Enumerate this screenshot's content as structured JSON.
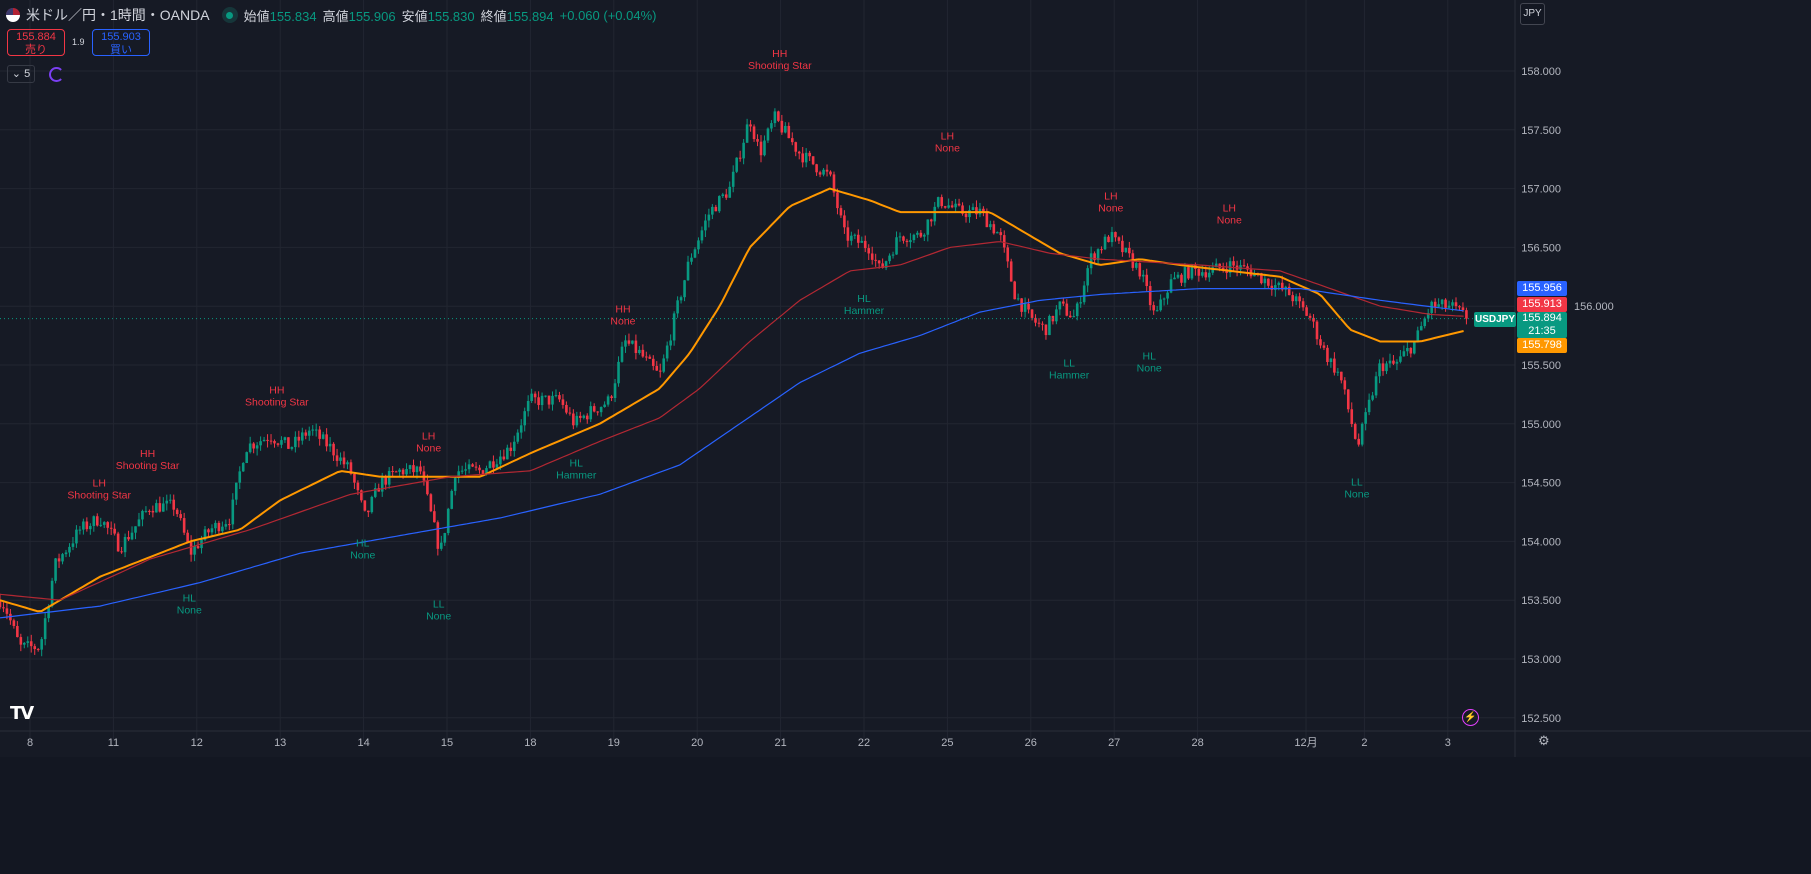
{
  "header": {
    "symbol_title": "米ドル／円・1時間・OANDA",
    "open_label": "始値",
    "open": "155.834",
    "high_label": "高値",
    "high": "155.906",
    "low_label": "安値",
    "low": "155.830",
    "close_label": "終値",
    "close": "155.894",
    "change": "+0.060 (+0.04%)"
  },
  "trade": {
    "sell_price": "155.884",
    "sell_label": "売り",
    "spread": "1.9",
    "buy_price": "155.903",
    "buy_label": "買い"
  },
  "indicators_collapsed_count": "5",
  "currency": "JPY",
  "badges": {
    "blue": "155.956",
    "red": "155.913",
    "last": "155.894",
    "symbol": "USDJPY",
    "countdown": "21:35",
    "orange": "155.798"
  },
  "logo": "TV",
  "colors": {
    "up": "#089981",
    "down": "#f23645",
    "fast_ma": "#ff9800",
    "mid_ma": "#b22833",
    "slow_ma": "#2962ff",
    "label_red": "#f23645",
    "label_green": "#089981"
  },
  "chart_data": {
    "type": "candlestick",
    "title": "USDJPY 1h",
    "x_unit": "trading days from 8th",
    "ylim": [
      152.3,
      158.3
    ],
    "xlim": [
      -0.36,
      17.9
    ],
    "y_ticks": [
      "158.000",
      "157.500",
      "157.000",
      "156.500",
      "156.000",
      "155.500",
      "155.000",
      "154.500",
      "154.000",
      "153.500",
      "153.000",
      "152.500"
    ],
    "x_ticks": [
      {
        "label": "8",
        "x": 0
      },
      {
        "label": "11",
        "x": 1
      },
      {
        "label": "12",
        "x": 2
      },
      {
        "label": "13",
        "x": 3
      },
      {
        "label": "14",
        "x": 4
      },
      {
        "label": "15",
        "x": 5
      },
      {
        "label": "18",
        "x": 6
      },
      {
        "label": "19",
        "x": 7
      },
      {
        "label": "20",
        "x": 8
      },
      {
        "label": "21",
        "x": 9
      },
      {
        "label": "22",
        "x": 10
      },
      {
        "label": "25",
        "x": 11
      },
      {
        "label": "26",
        "x": 12
      },
      {
        "label": "27",
        "x": 13
      },
      {
        "label": "28",
        "x": 14
      },
      {
        "label": "12月",
        "x": 15.3
      },
      {
        "label": "2",
        "x": 16
      },
      {
        "label": "3",
        "x": 17
      }
    ],
    "price_path": [
      [
        -0.36,
        153.5
      ],
      [
        -0.3,
        153.45
      ],
      [
        -0.12,
        153.1
      ],
      [
        0.12,
        153.1
      ],
      [
        0.3,
        153.8
      ],
      [
        0.6,
        154.1
      ],
      [
        0.84,
        154.2
      ],
      [
        1.08,
        153.95
      ],
      [
        1.44,
        154.3
      ],
      [
        1.74,
        154.3
      ],
      [
        1.92,
        153.9
      ],
      [
        2.16,
        154.1
      ],
      [
        2.4,
        154.2
      ],
      [
        2.58,
        154.8
      ],
      [
        2.88,
        154.9
      ],
      [
        3.12,
        154.8
      ],
      [
        3.36,
        154.95
      ],
      [
        3.6,
        154.8
      ],
      [
        3.84,
        154.6
      ],
      [
        4.02,
        154.2
      ],
      [
        4.2,
        154.5
      ],
      [
        4.44,
        154.6
      ],
      [
        4.68,
        154.6
      ],
      [
        4.92,
        153.9
      ],
      [
        5.1,
        154.6
      ],
      [
        5.4,
        154.6
      ],
      [
        5.76,
        154.8
      ],
      [
        6.0,
        155.2
      ],
      [
        6.35,
        155.2
      ],
      [
        6.53,
        155.0
      ],
      [
        6.71,
        155.1
      ],
      [
        6.95,
        155.2
      ],
      [
        7.13,
        155.7
      ],
      [
        7.31,
        155.6
      ],
      [
        7.55,
        155.4
      ],
      [
        7.73,
        155.9
      ],
      [
        7.91,
        156.4
      ],
      [
        8.15,
        156.8
      ],
      [
        8.39,
        157.0
      ],
      [
        8.63,
        157.6
      ],
      [
        8.75,
        157.3
      ],
      [
        8.93,
        157.6
      ],
      [
        9.23,
        157.3
      ],
      [
        9.59,
        157.1
      ],
      [
        9.77,
        156.6
      ],
      [
        10.07,
        156.5
      ],
      [
        10.19,
        156.3
      ],
      [
        10.43,
        156.6
      ],
      [
        10.67,
        156.6
      ],
      [
        10.91,
        156.9
      ],
      [
        11.15,
        156.8
      ],
      [
        11.39,
        156.8
      ],
      [
        11.63,
        156.6
      ],
      [
        11.81,
        156.1
      ],
      [
        11.99,
        155.9
      ],
      [
        12.17,
        155.8
      ],
      [
        12.35,
        156.0
      ],
      [
        12.53,
        155.9
      ],
      [
        12.71,
        156.4
      ],
      [
        12.95,
        156.6
      ],
      [
        13.13,
        156.45
      ],
      [
        13.31,
        156.3
      ],
      [
        13.49,
        155.9
      ],
      [
        13.67,
        156.2
      ],
      [
        13.91,
        156.3
      ],
      [
        14.15,
        156.3
      ],
      [
        14.39,
        156.35
      ],
      [
        14.63,
        156.3
      ],
      [
        14.87,
        156.2
      ],
      [
        15.11,
        156.1
      ],
      [
        15.35,
        155.9
      ],
      [
        15.53,
        155.6
      ],
      [
        15.71,
        155.4
      ],
      [
        15.92,
        154.8
      ],
      [
        16.07,
        155.2
      ],
      [
        16.19,
        155.5
      ],
      [
        16.37,
        155.5
      ],
      [
        16.61,
        155.7
      ],
      [
        16.79,
        156.0
      ],
      [
        17.03,
        156.0
      ],
      [
        17.24,
        155.894
      ]
    ],
    "series": [
      {
        "name": "fast MA",
        "color": "#ff9800",
        "points": [
          [
            -0.36,
            153.5
          ],
          [
            0.12,
            153.4
          ],
          [
            0.84,
            153.7
          ],
          [
            1.92,
            154.0
          ],
          [
            2.52,
            154.1
          ],
          [
            3.0,
            154.35
          ],
          [
            3.72,
            154.6
          ],
          [
            4.2,
            154.55
          ],
          [
            4.92,
            154.55
          ],
          [
            5.4,
            154.55
          ],
          [
            6.0,
            154.75
          ],
          [
            6.83,
            155.0
          ],
          [
            7.55,
            155.3
          ],
          [
            7.91,
            155.6
          ],
          [
            8.27,
            156.0
          ],
          [
            8.63,
            156.5
          ],
          [
            9.11,
            156.85
          ],
          [
            9.59,
            157.0
          ],
          [
            10.07,
            156.9
          ],
          [
            10.43,
            156.8
          ],
          [
            10.91,
            156.8
          ],
          [
            11.51,
            156.8
          ],
          [
            11.99,
            156.6
          ],
          [
            12.35,
            156.45
          ],
          [
            12.83,
            156.35
          ],
          [
            13.31,
            156.4
          ],
          [
            13.79,
            156.35
          ],
          [
            14.39,
            156.3
          ],
          [
            14.99,
            156.25
          ],
          [
            15.47,
            156.1
          ],
          [
            15.83,
            155.8
          ],
          [
            16.19,
            155.7
          ],
          [
            16.67,
            155.7
          ],
          [
            17.24,
            155.798
          ]
        ]
      },
      {
        "name": "mid MA",
        "color": "#b22833",
        "points": [
          [
            -0.36,
            153.55
          ],
          [
            0.36,
            153.5
          ],
          [
            1.44,
            153.85
          ],
          [
            2.64,
            154.1
          ],
          [
            3.84,
            154.4
          ],
          [
            5.04,
            154.55
          ],
          [
            6.0,
            154.6
          ],
          [
            6.83,
            154.85
          ],
          [
            7.55,
            155.05
          ],
          [
            8.03,
            155.3
          ],
          [
            8.63,
            155.7
          ],
          [
            9.23,
            156.05
          ],
          [
            9.83,
            156.3
          ],
          [
            10.43,
            156.35
          ],
          [
            11.03,
            156.5
          ],
          [
            11.63,
            156.55
          ],
          [
            12.23,
            156.45
          ],
          [
            12.83,
            156.4
          ],
          [
            14.03,
            156.35
          ],
          [
            14.99,
            156.3
          ],
          [
            15.59,
            156.15
          ],
          [
            16.19,
            156.0
          ],
          [
            16.79,
            155.93
          ],
          [
            17.24,
            155.913
          ]
        ]
      },
      {
        "name": "slow MA",
        "color": "#2962ff",
        "points": [
          [
            -0.36,
            153.35
          ],
          [
            0.84,
            153.45
          ],
          [
            2.04,
            153.65
          ],
          [
            3.24,
            153.9
          ],
          [
            4.44,
            154.05
          ],
          [
            5.64,
            154.2
          ],
          [
            6.83,
            154.4
          ],
          [
            7.79,
            154.65
          ],
          [
            8.51,
            155.0
          ],
          [
            9.23,
            155.35
          ],
          [
            9.95,
            155.6
          ],
          [
            10.67,
            155.75
          ],
          [
            11.39,
            155.95
          ],
          [
            12.11,
            156.05
          ],
          [
            12.83,
            156.1
          ],
          [
            14.03,
            156.15
          ],
          [
            15.23,
            156.15
          ],
          [
            16.19,
            156.05
          ],
          [
            17.24,
            155.956
          ]
        ]
      }
    ],
    "annotations": [
      {
        "l1": "LH",
        "l2": "Shooting Star",
        "kind": "red",
        "x": 0.83,
        "y": 154.45
      },
      {
        "l1": "HH",
        "l2": "Shooting Star",
        "kind": "red",
        "x": 1.41,
        "y": 154.7
      },
      {
        "l1": "HH",
        "l2": "Shooting Star",
        "kind": "red",
        "x": 2.96,
        "y": 155.24
      },
      {
        "l1": "LH",
        "l2": "None",
        "kind": "red",
        "x": 4.78,
        "y": 154.85
      },
      {
        "l1": "HH",
        "l2": "None",
        "kind": "red",
        "x": 7.11,
        "y": 155.93
      },
      {
        "l1": "HH",
        "l2": "Shooting Star",
        "kind": "red",
        "x": 8.99,
        "y": 158.1
      },
      {
        "l1": "LH",
        "l2": "None",
        "kind": "red",
        "x": 11.0,
        "y": 157.4
      },
      {
        "l1": "LH",
        "l2": "None",
        "kind": "red",
        "x": 12.96,
        "y": 156.89
      },
      {
        "l1": "LH",
        "l2": "None",
        "kind": "red",
        "x": 14.38,
        "y": 156.79
      },
      {
        "l1": "HL",
        "l2": "None",
        "kind": "green",
        "x": 1.91,
        "y": 153.47
      },
      {
        "l1": "HL",
        "l2": "None",
        "kind": "green",
        "x": 3.99,
        "y": 153.94
      },
      {
        "l1": "LL",
        "l2": "None",
        "kind": "green",
        "x": 4.9,
        "y": 153.42
      },
      {
        "l1": "HL",
        "l2": "Hammer",
        "kind": "green",
        "x": 6.55,
        "y": 154.62
      },
      {
        "l1": "HL",
        "l2": "Hammer",
        "kind": "green",
        "x": 10.0,
        "y": 156.02
      },
      {
        "l1": "LL",
        "l2": "Hammer",
        "kind": "green",
        "x": 12.46,
        "y": 155.47
      },
      {
        "l1": "HL",
        "l2": "None",
        "kind": "green",
        "x": 13.42,
        "y": 155.53
      },
      {
        "l1": "LL",
        "l2": "None",
        "kind": "green",
        "x": 15.91,
        "y": 154.46
      }
    ]
  }
}
